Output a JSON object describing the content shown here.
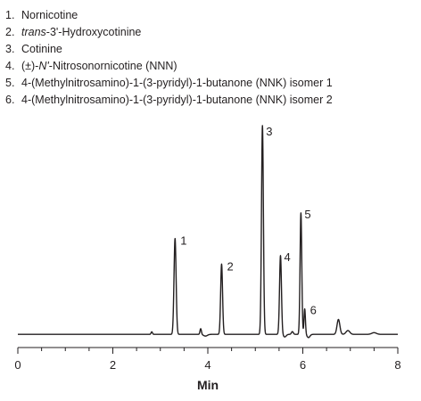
{
  "legend": {
    "items": [
      {
        "num": "1.",
        "pre": "",
        "italic": "",
        "text": "Nornicotine"
      },
      {
        "num": "2.",
        "pre": "",
        "italic": "trans",
        "text": "-3'-Hydroxycotinine"
      },
      {
        "num": "3.",
        "pre": "",
        "italic": "",
        "text": "Cotinine"
      },
      {
        "num": "4.",
        "pre": "(±)-",
        "italic": "N'",
        "text": "-Nitrosonornicotine (NNN)"
      },
      {
        "num": "5.",
        "pre": "",
        "italic": "",
        "text": "4-(Methylnitrosamino)-1-(3-pyridyl)-1-butanone (NNK) isomer 1"
      },
      {
        "num": "6.",
        "pre": "",
        "italic": "",
        "text": "4-(Methylnitrosamino)-1-(3-pyridyl)-1-butanone (NNK) isomer 2"
      }
    ]
  },
  "chart_data": {
    "type": "line",
    "title": "",
    "xlabel": "Min",
    "ylabel": "",
    "xlim": [
      0,
      8
    ],
    "ylim": [
      0,
      100
    ],
    "x_ticks": [
      0,
      2,
      4,
      6,
      8
    ],
    "x_tick_labels": [
      "0",
      "2",
      "4",
      "6",
      "8"
    ],
    "grid": false,
    "line_color": "#231f20",
    "baseline": 2,
    "peaks": [
      {
        "label": "1",
        "x": 3.31,
        "height": 45,
        "width": 0.022
      },
      {
        "label": "2",
        "x": 4.29,
        "height": 33,
        "width": 0.02
      },
      {
        "label": "3",
        "x": 5.15,
        "height": 98,
        "width": 0.02
      },
      {
        "label": "4",
        "x": 5.53,
        "height": 37,
        "width": 0.02
      },
      {
        "label": "5",
        "x": 5.96,
        "height": 57,
        "width": 0.018
      },
      {
        "label": "6",
        "x": 6.04,
        "height": 12,
        "width": 0.015
      }
    ],
    "minor_peaks": [
      {
        "x": 2.82,
        "height": 1.2,
        "width": 0.015
      },
      {
        "x": 3.85,
        "height": 2.7,
        "width": 0.015
      },
      {
        "x": 5.78,
        "height": 1.3,
        "width": 0.02
      },
      {
        "x": 6.75,
        "height": 7.0,
        "width": 0.03
      },
      {
        "x": 6.95,
        "height": 1.8,
        "width": 0.04
      },
      {
        "x": 7.5,
        "height": 0.8,
        "width": 0.05
      }
    ]
  }
}
